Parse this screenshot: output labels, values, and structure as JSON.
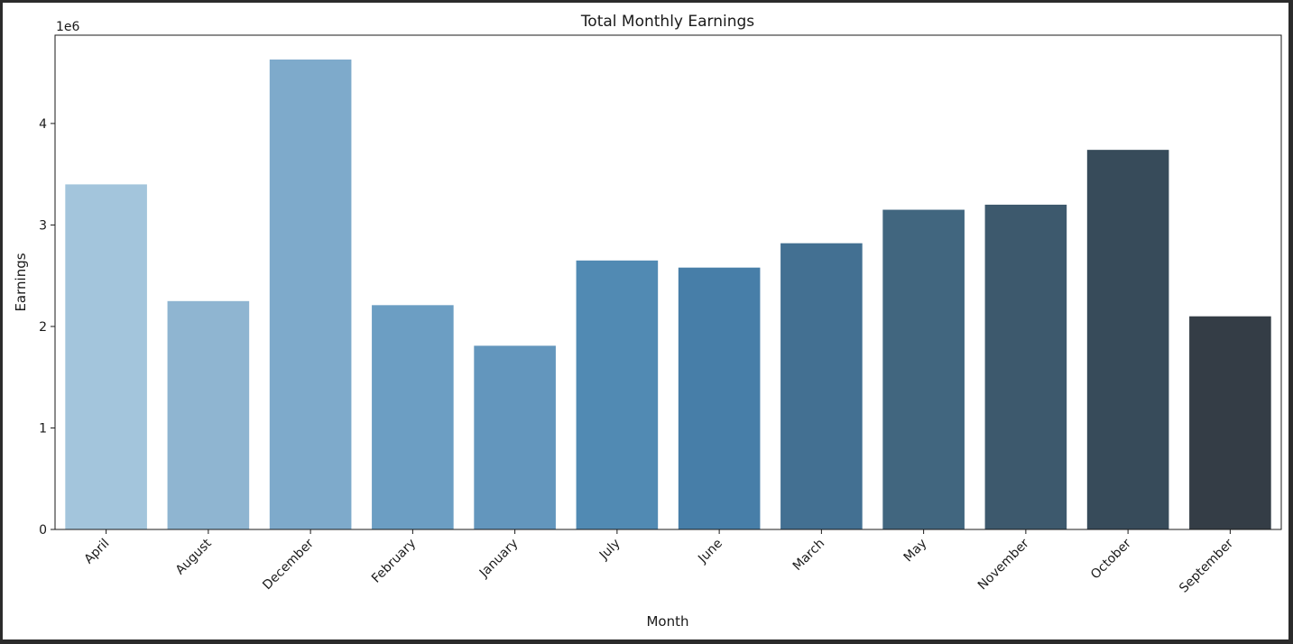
{
  "chart_data": {
    "type": "bar",
    "title": "Total Monthly Earnings",
    "xlabel": "Month",
    "ylabel": "Earnings",
    "y_scale_label": "1e6",
    "categories": [
      "April",
      "August",
      "December",
      "February",
      "January",
      "July",
      "June",
      "March",
      "May",
      "November",
      "October",
      "September"
    ],
    "values": [
      3400000,
      2250000,
      4630000,
      2210000,
      1810000,
      2650000,
      2580000,
      2820000,
      3150000,
      3200000,
      3740000,
      2100000
    ],
    "ylim": [
      0,
      4870000
    ],
    "yticks": [
      0,
      1,
      2,
      3,
      4
    ],
    "grid": false,
    "legend": "none",
    "colors": [
      "#a3c5dc",
      "#8fb5d1",
      "#7eaacb",
      "#6c9ec3",
      "#6396bd",
      "#518ab3",
      "#477ea8",
      "#437092",
      "#41667f",
      "#3d596d",
      "#374b5a",
      "#343d46"
    ]
  }
}
